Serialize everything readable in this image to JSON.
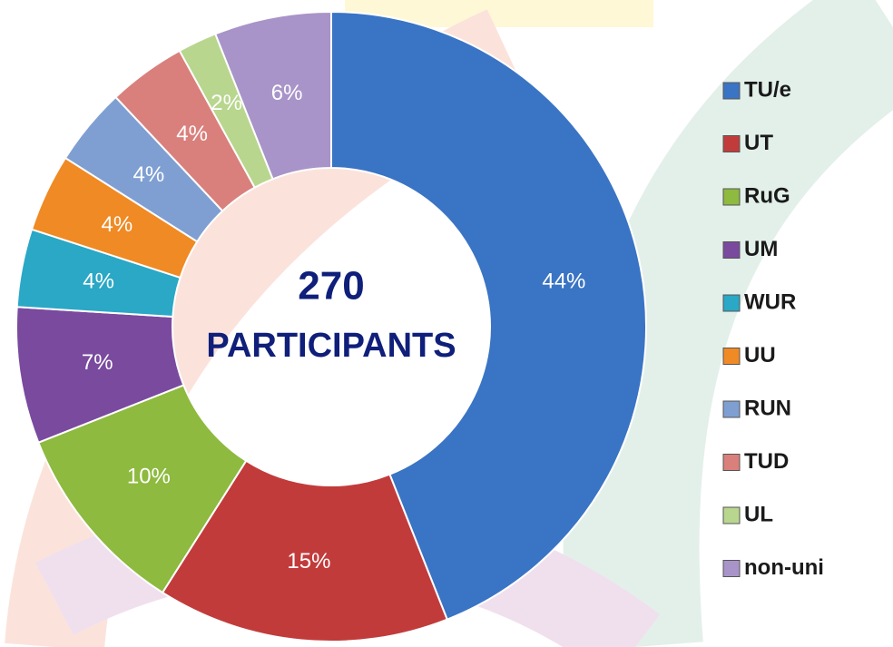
{
  "chart_data": {
    "type": "donut",
    "categories": [
      "TU/e",
      "UT",
      "RuG",
      "UM",
      "WUR",
      "UU",
      "RUN",
      "TUD",
      "UL",
      "non-uni"
    ],
    "values": [
      44,
      15,
      10,
      7,
      4,
      4,
      4,
      4,
      2,
      6
    ],
    "value_labels": [
      "44%",
      "15%",
      "10%",
      "7%",
      "4%",
      "4%",
      "4%",
      "4%",
      "2%",
      "6%"
    ],
    "colors": [
      "#3a74c4",
      "#c23b3b",
      "#8dba3f",
      "#7a4a9e",
      "#2aa8c6",
      "#f08a24",
      "#7f9fd2",
      "#d9807c",
      "#b8d68e",
      "#a894c8"
    ],
    "annotations": [
      "270",
      "PARTICIPANTS"
    ],
    "legend": "right"
  }
}
